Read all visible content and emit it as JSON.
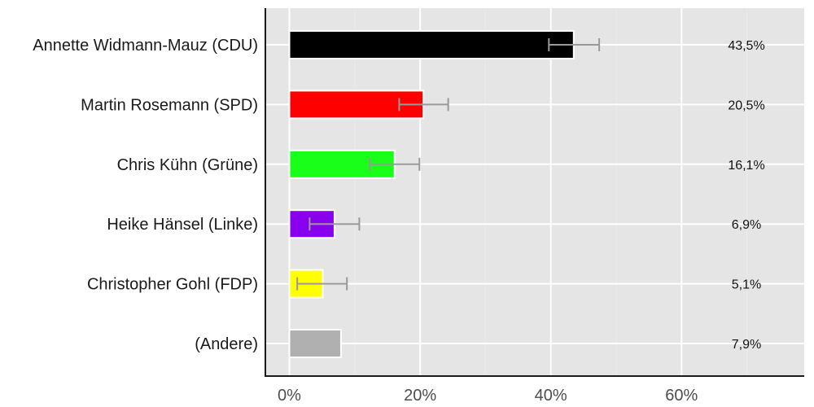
{
  "chart_data": {
    "type": "bar",
    "orientation": "horizontal",
    "title": "",
    "xlabel": "",
    "ylabel": "",
    "xlim": [
      -3.6,
      78.8
    ],
    "x_ticks": [
      0,
      20,
      40,
      60
    ],
    "x_tick_labels": [
      "0%",
      "20%",
      "40%",
      "60%"
    ],
    "grid": true,
    "legend": null,
    "categories": [
      "Annette Widmann-Mauz (CDU)",
      "Martin Rosemann (SPD)",
      "Chris Kühn (Grüne)",
      "Heike Hänsel (Linke)",
      "Christopher Gohl (FDP)",
      "(Andere)"
    ],
    "values": [
      43.5,
      20.5,
      16.1,
      6.9,
      5.1,
      7.9
    ],
    "value_labels": [
      "43,5%",
      "20,5%",
      "16,1%",
      "6,9%",
      "5,1%",
      "7,9%"
    ],
    "colors": [
      "#000000",
      "#ff0000",
      "#1aff1a",
      "#8800ee",
      "#ffff00",
      "#b0b0b0"
    ],
    "error_bars": [
      {
        "low": 39.7,
        "high": 47.4
      },
      {
        "low": 16.8,
        "high": 24.3
      },
      {
        "low": 12.3,
        "high": 19.9
      },
      {
        "low": 3.1,
        "high": 10.7
      },
      {
        "low": 1.2,
        "high": 8.8
      },
      null
    ]
  },
  "style": {
    "panel_bg": "#e5e5e5",
    "grid_color": "#ffffff",
    "axis_color": "#1a1a1a",
    "error_bar_color": "#999999",
    "bar_outline": "#ffffff"
  }
}
